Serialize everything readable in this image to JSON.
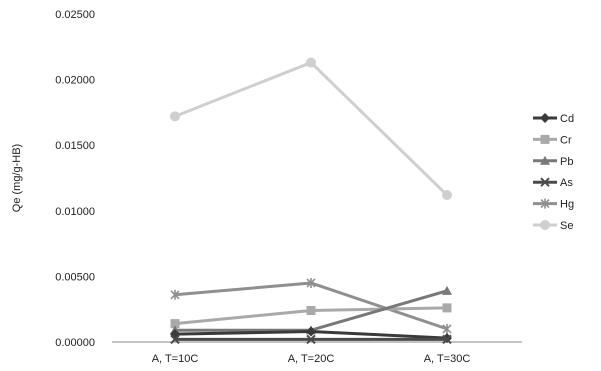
{
  "chart_data": {
    "type": "line",
    "title": "",
    "xlabel": "",
    "ylabel": "Qe (mg/g-HB)",
    "categories": [
      "A, T=10C",
      "A, T=20C",
      "A, T=30C"
    ],
    "ylim": [
      0,
      0.025
    ],
    "y_ticks": [
      "0.00000",
      "0.00500",
      "0.01000",
      "0.01500",
      "0.02000",
      "0.02500"
    ],
    "y_tick_values": [
      0,
      0.005,
      0.01,
      0.015,
      0.02,
      0.025
    ],
    "grid": false,
    "legend_position": "right",
    "series": [
      {
        "name": "Cd",
        "values": [
          0.0006,
          0.0008,
          0.0003
        ],
        "color": "#3a3a3a",
        "marker": "diamond"
      },
      {
        "name": "Cr",
        "values": [
          0.0014,
          0.0024,
          0.0026
        ],
        "color": "#a9a9a9",
        "marker": "square"
      },
      {
        "name": "Pb",
        "values": [
          0.0009,
          0.0009,
          0.0039
        ],
        "color": "#787878",
        "marker": "triangle"
      },
      {
        "name": "As",
        "values": [
          0.0002,
          0.0002,
          0.0002
        ],
        "color": "#4a4a4a",
        "marker": "x"
      },
      {
        "name": "Hg",
        "values": [
          0.0036,
          0.0045,
          0.001
        ],
        "color": "#8f8f8f",
        "marker": "asterisk"
      },
      {
        "name": "Se",
        "values": [
          0.0172,
          0.0213,
          0.0112
        ],
        "color": "#cfcfcf",
        "marker": "circle"
      }
    ]
  }
}
